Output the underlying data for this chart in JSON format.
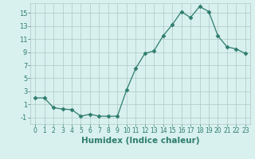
{
  "x": [
    0,
    1,
    2,
    3,
    4,
    5,
    6,
    7,
    8,
    9,
    10,
    11,
    12,
    13,
    14,
    15,
    16,
    17,
    18,
    19,
    20,
    21,
    22,
    23
  ],
  "y": [
    2.0,
    2.0,
    0.5,
    0.3,
    0.2,
    -0.8,
    -0.5,
    -0.8,
    -0.8,
    -0.8,
    3.2,
    6.5,
    8.8,
    9.2,
    11.5,
    13.2,
    15.2,
    14.3,
    16.0,
    15.2,
    11.5,
    9.8,
    9.5,
    8.8
  ],
  "xlabel": "Humidex (Indice chaleur)",
  "xlim": [
    -0.5,
    23.5
  ],
  "ylim": [
    -2.0,
    16.5
  ],
  "yticks": [
    -1,
    1,
    3,
    5,
    7,
    9,
    11,
    13,
    15
  ],
  "xticks": [
    0,
    1,
    2,
    3,
    4,
    5,
    6,
    7,
    8,
    9,
    10,
    11,
    12,
    13,
    14,
    15,
    16,
    17,
    18,
    19,
    20,
    21,
    22,
    23
  ],
  "xtick_labels": [
    "0",
    "1",
    "2",
    "3",
    "4",
    "5",
    "6",
    "7",
    "8",
    "9",
    "10",
    "11",
    "12",
    "13",
    "14",
    "15",
    "16",
    "17",
    "18",
    "19",
    "20",
    "21",
    "22",
    "23"
  ],
  "line_color": "#2e7d6e",
  "marker": "D",
  "marker_size": 2.5,
  "bg_color": "#d8f0ee",
  "grid_color": "#b0c8c4",
  "axis_label_color": "#2e7d6e",
  "tick_color": "#2e7d6e",
  "xlabel_fontsize": 7.5,
  "tick_fontsize_x": 5.5,
  "tick_fontsize_y": 6.0
}
